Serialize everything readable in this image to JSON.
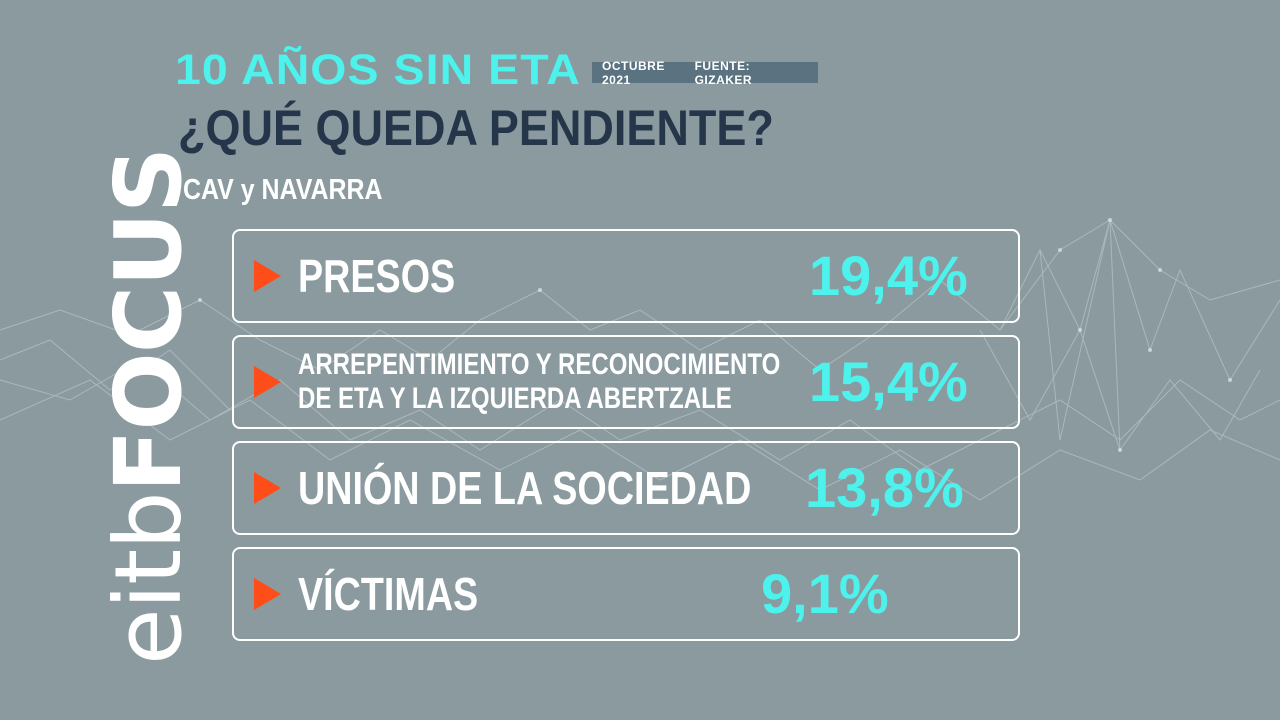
{
  "logo": {
    "part1": "eitb",
    "part2": "FOCUS"
  },
  "header": {
    "title": "10 AÑOS SIN ETA",
    "date": "OCTUBRE 2021",
    "source": "FUENTE: GIZAKER",
    "subtitle": "¿QUÉ QUEDA PENDIENTE?",
    "region": "CAV y NAVARRA"
  },
  "colors": {
    "background": "#8a9a9f",
    "accent_cyan": "#4ef2ec",
    "arrow_orange": "#ff4d1a",
    "title_dark": "#25364a"
  },
  "chart_data": {
    "type": "table",
    "title": "10 AÑOS SIN ETA",
    "subtitle": "¿QUÉ QUEDA PENDIENTE?",
    "region": "CAV y NAVARRA",
    "rows": [
      {
        "label": "PRESOS",
        "value": 19.4,
        "value_text": "19,4%"
      },
      {
        "label": "ARREPENTIMIENTO Y RECONOCIMIENTO\nDE ETA Y LA IZQUIERDA ABERTZALE",
        "value": 15.4,
        "value_text": "15,4%"
      },
      {
        "label": "UNIÓN DE LA SOCIEDAD",
        "value": 13.8,
        "value_text": "13,8%"
      },
      {
        "label": "VÍCTIMAS",
        "value": 9.1,
        "value_text": "9,1%"
      }
    ]
  }
}
